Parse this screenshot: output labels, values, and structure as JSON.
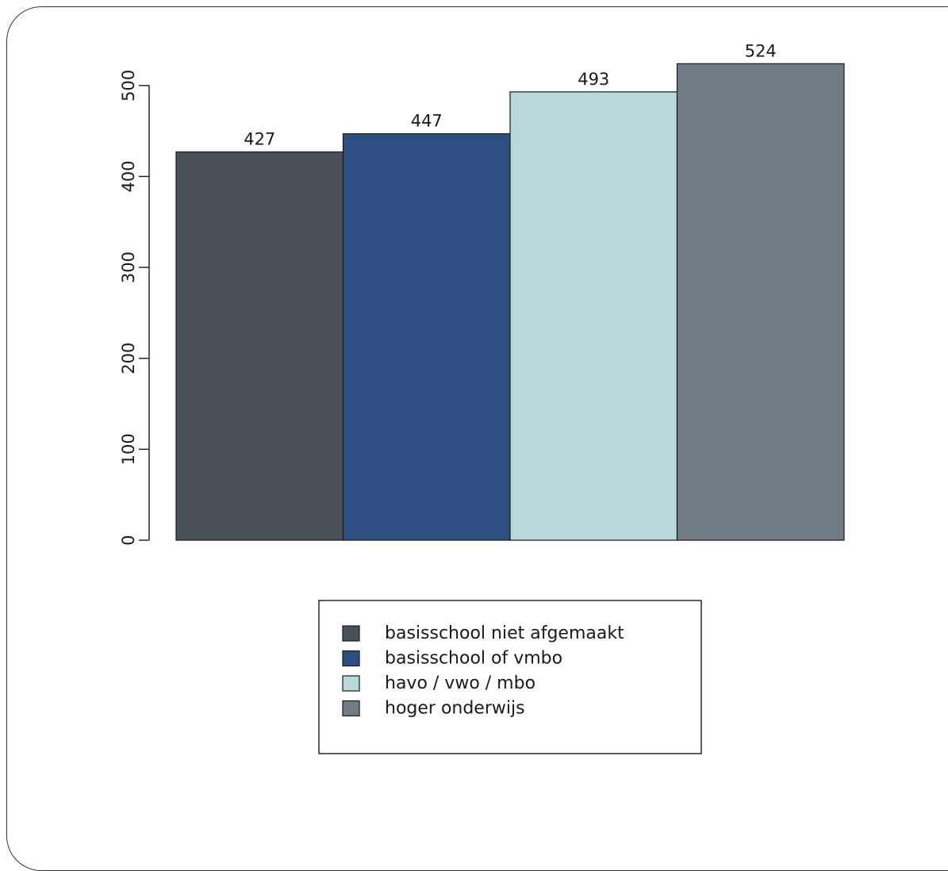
{
  "chart_data": {
    "type": "bar",
    "title": "",
    "xlabel": "",
    "ylabel": "",
    "categories": [
      "basisschool niet afgemaakt",
      "basisschool of vmbo",
      "havo / vwo / mbo",
      "hoger onderwijs"
    ],
    "values": [
      427,
      447,
      493,
      524
    ],
    "data_labels": [
      "427",
      "447",
      "493",
      "524"
    ],
    "ylim": [
      0,
      500
    ],
    "yticks": [
      0,
      100,
      200,
      300,
      400,
      500
    ],
    "ytick_labels": [
      "0",
      "100",
      "200",
      "300",
      "400",
      "500"
    ],
    "grid": false,
    "legend_position": "bottom-center",
    "colors": [
      "#4a5159",
      "#2d4e80",
      "#b8d8da",
      "#717b84"
    ]
  }
}
